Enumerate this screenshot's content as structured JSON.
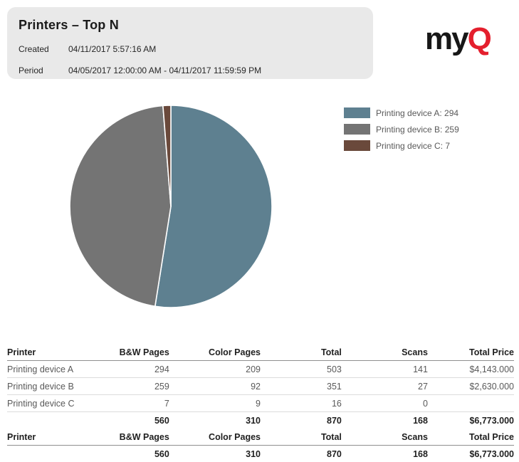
{
  "report": {
    "title": "Printers – Top N",
    "created_label": "Created",
    "created_value": "04/11/2017 5:57:16 AM",
    "period_label": "Period",
    "period_value": "04/05/2017 12:00:00 AM - 04/11/2017 11:59:59 PM"
  },
  "logo": {
    "text_black": "my",
    "text_red": "Q",
    "red_color": "#e41f2d"
  },
  "chart_data": {
    "type": "pie",
    "title": "",
    "legend_position": "right",
    "start_angle_deg": 0,
    "direction": "clockwise",
    "separator_color": "#ffffff",
    "total": 560,
    "slices": [
      {
        "label": "Printing device A",
        "value": 294,
        "color": "#5e8090",
        "legend_text": "Printing device A: 294"
      },
      {
        "label": "Printing device B",
        "value": 259,
        "color": "#747474",
        "legend_text": "Printing device B: 259"
      },
      {
        "label": "Printing device C",
        "value": 7,
        "color": "#6a493b",
        "legend_text": "Printing device C: 7"
      }
    ]
  },
  "table": {
    "columns": [
      "Printer",
      "B&W Pages",
      "Color Pages",
      "Total",
      "Scans",
      "Total Price"
    ],
    "rows": [
      {
        "cells": [
          "Printing device A",
          "294",
          "209",
          "503",
          "141",
          "$4,143.000"
        ]
      },
      {
        "cells": [
          "Printing device B",
          "259",
          "92",
          "351",
          "27",
          "$2,630.000"
        ]
      },
      {
        "cells": [
          "Printing device C",
          "7",
          "9",
          "16",
          "0",
          ""
        ]
      }
    ],
    "totals": {
      "cells": [
        "",
        "560",
        "310",
        "870",
        "168",
        "$6,773.000"
      ]
    },
    "summary": {
      "columns": [
        "Printer",
        "B&W Pages",
        "Color Pages",
        "Total",
        "Scans",
        "Total Price"
      ],
      "totals": {
        "cells": [
          "",
          "560",
          "310",
          "870",
          "168",
          "$6,773.000"
        ]
      }
    }
  }
}
